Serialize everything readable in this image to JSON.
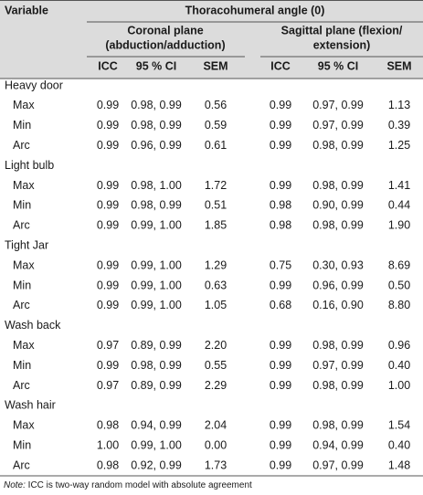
{
  "header": {
    "variable": "Variable",
    "group": "Thoracohumeral angle (0)",
    "coronal": [
      "Coronal plane",
      "(abduction/adduction)"
    ],
    "sagittal": [
      "Sagittal plane (flexion/",
      "extension)"
    ],
    "columns": [
      "ICC",
      "95 % CI",
      "SEM",
      "ICC",
      "95 % CI",
      "SEM"
    ]
  },
  "groups": [
    {
      "name": "Heavy door",
      "rows": [
        {
          "label": "Max",
          "cells": [
            "0.99",
            "0.98, 0.99",
            "0.56",
            "0.99",
            "0.97, 0.99",
            "1.13"
          ]
        },
        {
          "label": "Min",
          "cells": [
            "0.99",
            "0.98, 0.99",
            "0.59",
            "0.99",
            "0.97, 0.99",
            "0.39"
          ]
        },
        {
          "label": "Arc",
          "cells": [
            "0.99",
            "0.96, 0.99",
            "0.61",
            "0.99",
            "0.98, 0.99",
            "1.25"
          ]
        }
      ]
    },
    {
      "name": "Light bulb",
      "rows": [
        {
          "label": "Max",
          "cells": [
            "0.99",
            "0.98, 1.00",
            "1.72",
            "0.99",
            "0.98, 0.99",
            "1.41"
          ]
        },
        {
          "label": "Min",
          "cells": [
            "0.99",
            "0.98, 0.99",
            "0.51",
            "0.98",
            "0.90, 0.99",
            "0.44"
          ]
        },
        {
          "label": "Arc",
          "cells": [
            "0.99",
            "0.99, 1.00",
            "1.85",
            "0.98",
            "0.98, 0.99",
            "1.90"
          ]
        }
      ]
    },
    {
      "name": "Tight Jar",
      "rows": [
        {
          "label": "Max",
          "cells": [
            "0.99",
            "0.99, 1.00",
            "1.29",
            "0.75",
            "0.30, 0.93",
            "8.69"
          ]
        },
        {
          "label": "Min",
          "cells": [
            "0.99",
            "0.99, 1.00",
            "0.63",
            "0.99",
            "0.96, 0.99",
            "0.50"
          ]
        },
        {
          "label": "Arc",
          "cells": [
            "0.99",
            "0.99, 1.00",
            "1.05",
            "0.68",
            "0.16, 0.90",
            "8.80"
          ]
        }
      ]
    },
    {
      "name": "Wash back",
      "rows": [
        {
          "label": "Max",
          "cells": [
            "0.97",
            "0.89, 0.99",
            "2.20",
            "0.99",
            "0.98, 0.99",
            "0.96"
          ]
        },
        {
          "label": "Min",
          "cells": [
            "0.99",
            "0.98, 0.99",
            "0.55",
            "0.99",
            "0.97, 0.99",
            "0.40"
          ]
        },
        {
          "label": "Arc",
          "cells": [
            "0.97",
            "0.89, 0.99",
            "2.29",
            "0.99",
            "0.98, 0.99",
            "1.00"
          ]
        }
      ]
    },
    {
      "name": "Wash hair",
      "rows": [
        {
          "label": "Max",
          "cells": [
            "0.98",
            "0.94, 0.99",
            "2.04",
            "0.99",
            "0.98, 0.99",
            "1.54"
          ]
        },
        {
          "label": "Min",
          "cells": [
            "1.00",
            "0.99, 1.00",
            "0.00",
            "0.99",
            "0.94, 0.99",
            "0.40"
          ]
        },
        {
          "label": "Arc",
          "cells": [
            "0.98",
            "0.92, 0.99",
            "1.73",
            "0.99",
            "0.97, 0.99",
            "1.48"
          ]
        }
      ]
    }
  ],
  "note": {
    "label": "Note:",
    "text": " ICC is two-way random model with absolute agreement"
  }
}
